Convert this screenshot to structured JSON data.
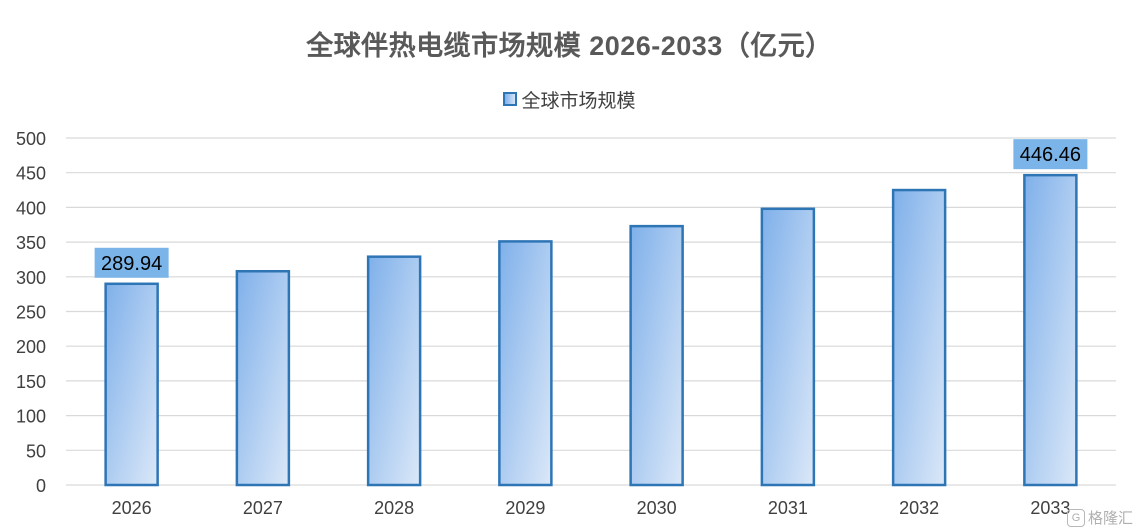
{
  "chart_data": {
    "type": "bar",
    "title": "全球伴热电缆市场规模 2026-2033（亿元）",
    "xlabel": "",
    "ylabel": "",
    "categories": [
      "2026",
      "2027",
      "2028",
      "2029",
      "2030",
      "2031",
      "2032",
      "2033"
    ],
    "series": [
      {
        "name": "全球市场规模",
        "values": [
          289.94,
          308,
          329,
          351,
          373,
          398,
          425,
          446.46
        ]
      }
    ],
    "data_labels": [
      {
        "index": 0,
        "text": "289.94"
      },
      {
        "index": 7,
        "text": "446.46"
      }
    ],
    "ylim": [
      0,
      500
    ],
    "yticks": [
      0,
      50,
      100,
      150,
      200,
      250,
      300,
      350,
      400,
      450,
      500
    ],
    "grid": true,
    "legend_position": "top",
    "colors": {
      "bar_fill_start": "#7fb0ea",
      "bar_fill_end": "#dbe8f8",
      "bar_stroke": "#2e75b6",
      "label_bg": "#7ab4e8",
      "grid": "#d9d9d9",
      "title": "#595959",
      "axis_text": "#404040"
    }
  },
  "watermark": {
    "logo_text": "G",
    "text": "格隆汇"
  }
}
